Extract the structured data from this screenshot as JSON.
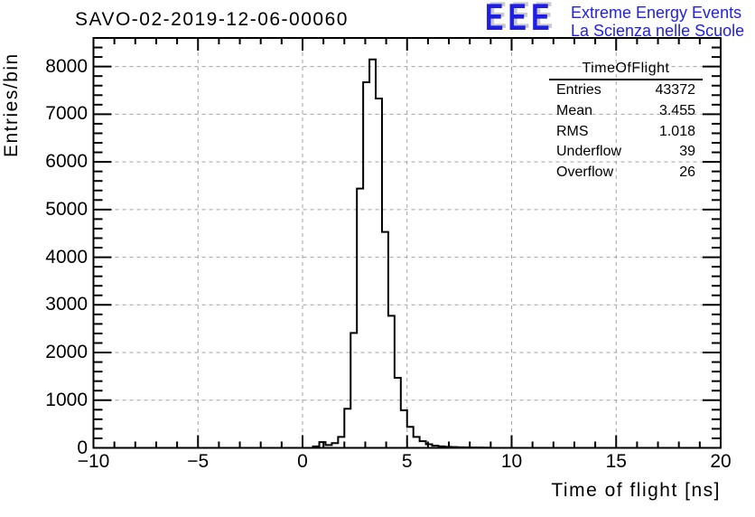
{
  "header": {
    "title": "SAVO-02-2019-12-06-00060",
    "logo": {
      "acronym": "EEE",
      "line1": "Extreme Energy Events",
      "line2": "La Scienza nelle Scuole",
      "color": "#2121e8",
      "shadow_color": "#c9c9c9"
    }
  },
  "stats_box": {
    "title": "TimeOfFlight",
    "rows": [
      {
        "label": "Entries",
        "value": "43372"
      },
      {
        "label": "Mean",
        "value": "3.455"
      },
      {
        "label": "RMS",
        "value": "1.018"
      },
      {
        "label": "Underflow",
        "value": "39"
      },
      {
        "label": "Overflow",
        "value": "26"
      }
    ]
  },
  "chart_data": {
    "type": "bar",
    "render_style": "root-step-histogram-outline",
    "title": "SAVO-02-2019-12-06-00060",
    "xlabel": "Time of flight [ns]",
    "ylabel": "Entries/bin",
    "xlim": [
      -10,
      20
    ],
    "ylim": [
      0,
      8600
    ],
    "x_major_ticks": [
      -10,
      -5,
      0,
      5,
      10,
      15,
      20
    ],
    "x_tick_labels": [
      "−10",
      "−5",
      "0",
      "5",
      "10",
      "15",
      "20"
    ],
    "x_minor_tick_step": 1,
    "y_major_ticks": [
      0,
      1000,
      2000,
      3000,
      4000,
      5000,
      6000,
      7000,
      8000
    ],
    "y_tick_labels": [
      "0",
      "1000",
      "2000",
      "3000",
      "4000",
      "5000",
      "6000",
      "7000",
      "8000"
    ],
    "y_minor_tick_step": 200,
    "grid": {
      "show": true,
      "style": "dashed",
      "color": "#a2a2a2",
      "on_major_ticks": true
    },
    "line_color": "#000000",
    "bin_width": 0.3,
    "first_bin_left_edge": 0.5,
    "bin_values": [
      30,
      120,
      60,
      100,
      230,
      820,
      2410,
      5440,
      7670,
      8150,
      7330,
      4530,
      2770,
      1470,
      790,
      440,
      230,
      140,
      75,
      45,
      30,
      22,
      16,
      12,
      10,
      8,
      6,
      5
    ],
    "underflow": 39,
    "overflow": 26
  }
}
